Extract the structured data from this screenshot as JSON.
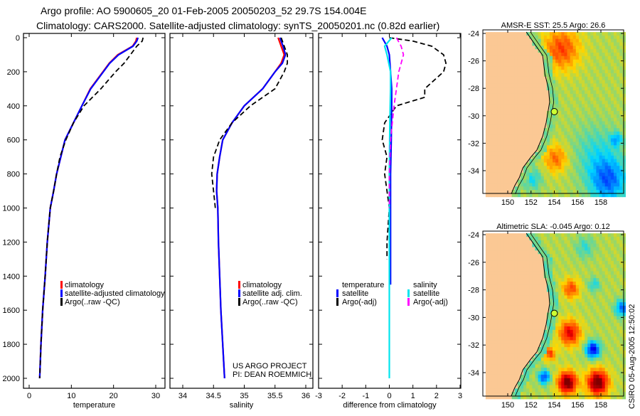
{
  "title": {
    "line1": "Argo profile: AO 5900605_20 01-Feb-2005 20050203_52 29.7S 154.004E",
    "line2": "Climatology: CARS2000. Satellite-adjusted climatology: synTS_20050201.nc (0.82d earlier)"
  },
  "side_label": "CSIRO 05-Aug-2005 12:50:02",
  "chart_data": [
    {
      "type": "line",
      "id": "temperature",
      "xlabel": "temperature",
      "ylabel": "",
      "xlim": [
        -1.5,
        32
      ],
      "ylim": [
        2000,
        0
      ],
      "xticks": [
        0,
        10,
        20,
        30
      ],
      "yticks": [
        0,
        200,
        400,
        600,
        800,
        1000,
        1200,
        1400,
        1600,
        1800,
        2000
      ],
      "legend": [
        "climatology",
        "satellite-adjusted climatology",
        "Argo(..raw -QC)"
      ],
      "series": [
        {
          "name": "climatology",
          "color": "#ff0000",
          "dashed": false,
          "x": [
            25.5,
            25.3,
            24.5,
            21,
            19,
            17.5,
            14.5,
            12.5,
            10.5,
            8.5,
            7.5,
            6.5,
            5.8,
            5.0,
            4.3,
            3.8,
            3.2,
            2.8,
            2.5
          ],
          "y": [
            0,
            20,
            50,
            100,
            150,
            200,
            300,
            400,
            500,
            600,
            700,
            800,
            900,
            1000,
            1200,
            1400,
            1600,
            1800,
            2000
          ]
        },
        {
          "name": "satellite-adjusted climatology",
          "color": "#0000ff",
          "dashed": false,
          "x": [
            25.8,
            25.5,
            24.6,
            21.2,
            19.1,
            17.6,
            14.6,
            12.5,
            10.5,
            8.5,
            7.5,
            6.5,
            5.8,
            5.0,
            4.3,
            3.8,
            3.2,
            2.8,
            2.5
          ],
          "y": [
            0,
            20,
            50,
            100,
            150,
            200,
            300,
            400,
            500,
            600,
            700,
            800,
            900,
            1000,
            1200,
            1400,
            1600,
            1800,
            2000
          ]
        },
        {
          "name": "Argo(..raw -QC)",
          "color": "#000000",
          "dashed": true,
          "x": [
            27,
            26.8,
            25.5,
            24,
            22.5,
            20.5,
            17,
            13,
            10.5,
            8.7,
            7.3,
            6.5,
            5.8,
            5.0,
            4.3,
            3.8,
            3.2,
            2.8,
            2.5
          ],
          "y": [
            0,
            20,
            50,
            100,
            150,
            200,
            300,
            400,
            500,
            600,
            700,
            800,
            900,
            1000,
            1200,
            1400,
            1600,
            1800,
            2000
          ]
        }
      ]
    },
    {
      "type": "line",
      "id": "salinity",
      "xlabel": "salinity",
      "xlim": [
        33.8,
        36.2
      ],
      "ylim": [
        2000,
        0
      ],
      "xticks": [
        34,
        34.5,
        35,
        35.5,
        36
      ],
      "legend": [
        "climatology",
        "satellite adj. clim.",
        "Argo(..raw -QC)"
      ],
      "annotation": [
        "US ARGO PROJECT",
        "PI: DEAN ROEMMICH"
      ],
      "series": [
        {
          "name": "climatology",
          "color": "#ff0000",
          "dashed": false,
          "x": [
            35.55,
            35.6,
            35.65,
            35.6,
            35.5,
            35.3,
            35.0,
            34.8,
            34.65,
            34.6,
            34.56,
            34.55,
            34.57,
            34.58,
            34.6,
            34.62,
            34.65,
            34.68
          ],
          "y": [
            0,
            50,
            100,
            150,
            200,
            300,
            400,
            500,
            600,
            700,
            800,
            900,
            1000,
            1200,
            1400,
            1600,
            1800,
            2000
          ]
        },
        {
          "name": "satellite adj. clim.",
          "color": "#0000ff",
          "dashed": false,
          "x": [
            35.58,
            35.63,
            35.67,
            35.62,
            35.5,
            35.3,
            35.0,
            34.8,
            34.65,
            34.6,
            34.56,
            34.55,
            34.57,
            34.58,
            34.6,
            34.62,
            34.65,
            34.68
          ],
          "y": [
            0,
            50,
            100,
            150,
            200,
            300,
            400,
            500,
            600,
            700,
            800,
            900,
            1000,
            1200,
            1400,
            1600,
            1800,
            2000
          ]
        },
        {
          "name": "Argo(..raw -QC)",
          "color": "#000000",
          "dashed": true,
          "x": [
            35.6,
            35.65,
            35.7,
            35.7,
            35.65,
            35.5,
            35.1,
            34.8,
            34.6,
            34.5,
            34.47,
            34.5,
            34.53
          ],
          "y": [
            0,
            50,
            100,
            150,
            200,
            300,
            400,
            500,
            600,
            700,
            800,
            900,
            1000
          ]
        }
      ]
    },
    {
      "type": "line",
      "id": "difference",
      "xlabel": "difference from climatology",
      "xlim": [
        -3,
        3
      ],
      "ylim": [
        2000,
        0
      ],
      "xticks": [
        -3,
        -2,
        -1,
        0,
        1,
        2,
        3
      ],
      "legend_temperature": {
        "heading": "temperature",
        "items": [
          "satellite",
          "Argo(-adj)"
        ]
      },
      "legend_salinity": {
        "heading": "salinity",
        "items": [
          "satellite",
          "Argo(-adj)"
        ]
      },
      "series": [
        {
          "name": "temperature satellite",
          "color": "#0000ff",
          "dashed": false,
          "x": [
            -0.3,
            -0.1,
            0.0,
            0.05,
            0.1,
            0.1,
            0.08,
            0.05,
            0.05,
            0.05,
            0.05
          ],
          "y": [
            0,
            50,
            100,
            200,
            300,
            400,
            600,
            800,
            1000,
            1200,
            1450
          ]
        },
        {
          "name": "temperature Argo(-adj)",
          "color": "#000000",
          "dashed": true,
          "x": [
            0,
            1.0,
            1.8,
            2.3,
            2.4,
            2.3,
            1.5,
            1.5,
            0.3,
            -0.2,
            -0.3,
            -0.1,
            -0.2,
            0,
            -0.1,
            -0.1
          ],
          "y": [
            0,
            20,
            50,
            100,
            150,
            200,
            300,
            350,
            400,
            500,
            600,
            700,
            800,
            1000,
            1200,
            1300
          ]
        },
        {
          "name": "salinity satellite",
          "color": "#00e5ee",
          "dashed": false,
          "x": [
            0.1,
            -0.2,
            -0.1,
            0.05,
            0.05,
            0.02,
            0.0,
            0.0,
            0.0,
            0.0
          ],
          "y": [
            0,
            50,
            100,
            200,
            300,
            500,
            800,
            1200,
            1600,
            2000
          ]
        },
        {
          "name": "salinity Argo(-adj)",
          "color": "#ff00ff",
          "dashed": true,
          "x": [
            0.3,
            0.5,
            0.6,
            0.4,
            0.3,
            0.2,
            0.05,
            0.0,
            0.0
          ],
          "y": [
            0,
            50,
            100,
            200,
            300,
            400,
            600,
            800,
            1000
          ]
        }
      ]
    },
    {
      "type": "heatmap",
      "id": "sst-map",
      "title": "AMSR-E SST: 25.5 Argo: 26.6",
      "xlim": [
        148.1,
        159.9
      ],
      "ylim": [
        -35.7,
        -23.9
      ],
      "xticks": [
        150,
        152,
        154,
        156,
        158
      ],
      "yticks": [
        -24,
        -26,
        -28,
        -30,
        -32,
        -34
      ],
      "marker": {
        "lon": 154.0,
        "lat": -29.7,
        "color": "#ccff33"
      },
      "land_color": "#fbc894"
    },
    {
      "type": "heatmap",
      "id": "sla-map",
      "title": "Altimetric SLA: -0.045 Argo: 0.12",
      "xlim": [
        148.1,
        159.9
      ],
      "ylim": [
        -35.7,
        -23.9
      ],
      "xticks": [
        150,
        152,
        154,
        156,
        158
      ],
      "yticks": [
        -24,
        -26,
        -28,
        -30,
        -32,
        -34
      ],
      "marker": {
        "lon": 154.0,
        "lat": -29.7,
        "color": "#ccff33"
      },
      "land_color": "#fbc894"
    }
  ]
}
